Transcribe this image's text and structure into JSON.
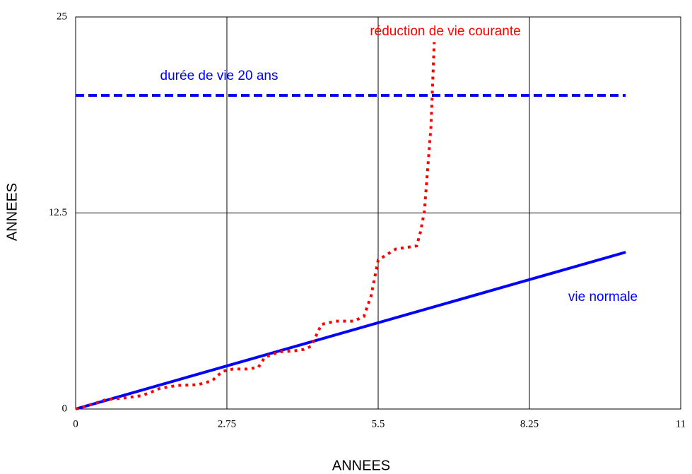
{
  "chart_data": {
    "type": "line",
    "x_label": "ANNEES",
    "y_label": "ANNEES",
    "xlim": [
      0,
      11
    ],
    "ylim": [
      0,
      25
    ],
    "xticks": [
      0,
      2.75,
      5.5,
      8.25,
      11
    ],
    "yticks": [
      0,
      12.5,
      25
    ],
    "grid": true,
    "series": [
      {
        "name": "vie normale",
        "color": "#0000ff",
        "style": "solid",
        "x": [
          0,
          10
        ],
        "values": [
          0,
          10
        ]
      },
      {
        "name": "durée de vie 20 ans",
        "color": "#0000ff",
        "style": "dashed",
        "x": [
          0,
          10
        ],
        "values": [
          20,
          20
        ]
      },
      {
        "name": "réduction de vie courante",
        "color": "#ff0000",
        "style": "dotted",
        "x": [
          0,
          0.3,
          0.55,
          0.875,
          1.2,
          1.39,
          1.52,
          1.84,
          2.22,
          2.48,
          2.67,
          2.86,
          3.12,
          3.32,
          3.44,
          3.7,
          3.96,
          4.15,
          4.28,
          4.47,
          4.73,
          5.05,
          5.24,
          5.37,
          5.5,
          5.82,
          6.2,
          6.27,
          6.34,
          6.4,
          6.46,
          6.52
        ],
        "values": [
          0,
          0.3,
          0.6,
          0.7,
          0.85,
          1.1,
          1.3,
          1.5,
          1.55,
          1.8,
          2.4,
          2.55,
          2.55,
          2.65,
          3.3,
          3.65,
          3.7,
          3.8,
          4.0,
          5.4,
          5.6,
          5.6,
          5.9,
          7.2,
          9.5,
          10.2,
          10.4,
          11.3,
          12.6,
          15.3,
          18.0,
          23.4
        ]
      }
    ]
  }
}
